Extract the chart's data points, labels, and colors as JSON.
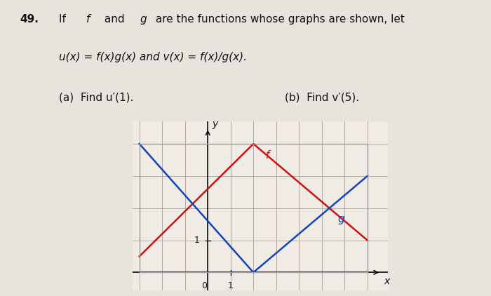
{
  "title_bold": "49.",
  "title_rest": " If ",
  "f_italic": "f",
  "and_text": " and ",
  "g_italic": "g",
  "title_end": " are the functions whose graphs are shown, let",
  "line2": "u(x) = f(x)g(x) and v(x) = f(x)/g(x).",
  "line3a": "(a)  Find u′(1).",
  "line3b": "(b)  Find v′(5).",
  "background_color": "#e8e4dd",
  "graph_bg": "#f0ece5",
  "grid_color": "#b8a898",
  "axis_color": "#111111",
  "f_color": "#cc1111",
  "g_color": "#1144bb",
  "f_label": "f",
  "g_label": "g",
  "x_label": "x",
  "y_label": "y",
  "xlim": [
    -3,
    7
  ],
  "ylim": [
    0,
    4
  ],
  "f_points": [
    [
      -3,
      0.5
    ],
    [
      2,
      4
    ],
    [
      7,
      1
    ]
  ],
  "g_points": [
    [
      -3,
      4
    ],
    [
      2,
      0
    ],
    [
      7,
      3
    ]
  ],
  "text_color": "#111111",
  "border_color": "#999999"
}
